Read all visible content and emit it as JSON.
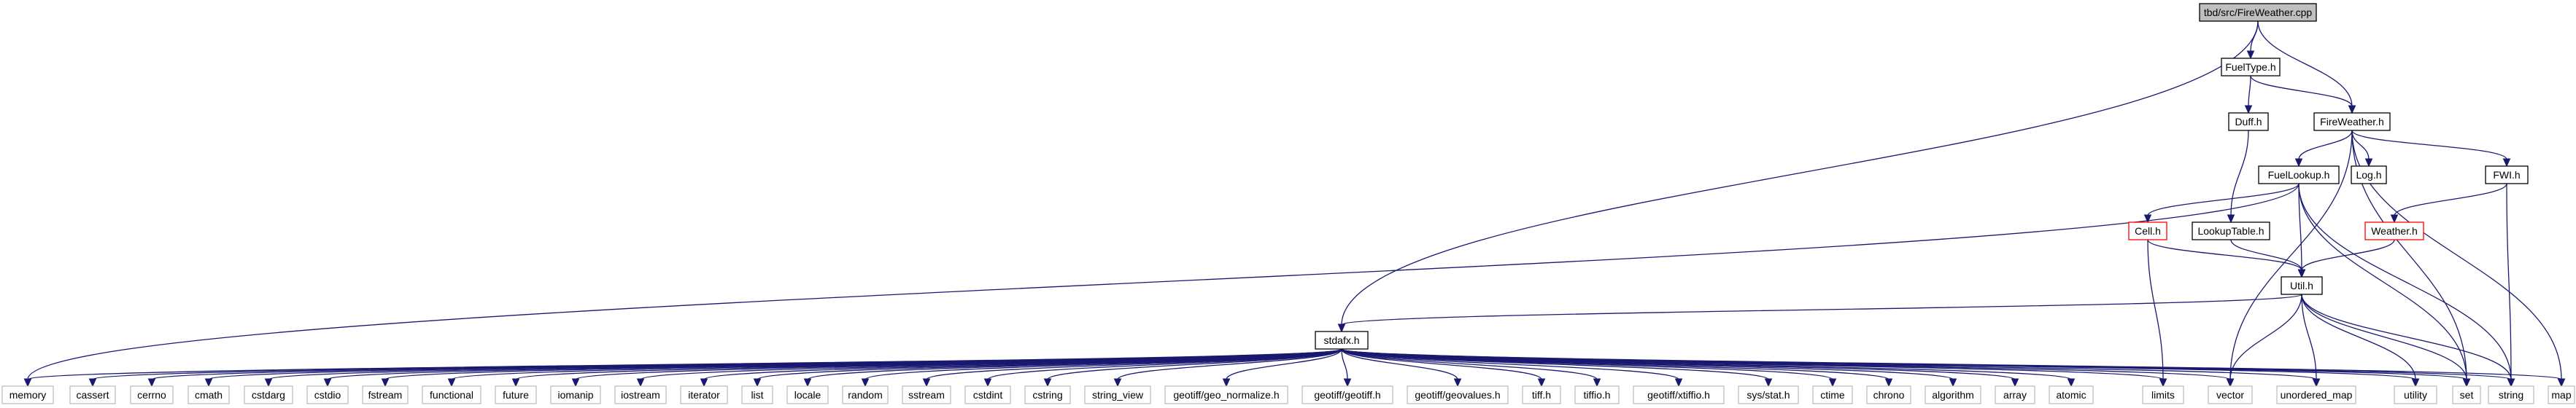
{
  "colors": {
    "edge": "#191970",
    "root_fill": "#bfbfbf",
    "node_fill": "#ffffff",
    "node_border": "#000000",
    "leaf_border": "#bfbfbf",
    "truncated_border": "#ff0000"
  },
  "nodes": {
    "root": {
      "label": "tbd/src/FireWeather.cpp",
      "kind": "root"
    },
    "fueltype": {
      "label": "FuelType.h",
      "kind": "normal"
    },
    "fireweather": {
      "label": "FireWeather.h",
      "kind": "normal"
    },
    "duff": {
      "label": "Duff.h",
      "kind": "normal"
    },
    "fuellookup": {
      "label": "FuelLookup.h",
      "kind": "normal"
    },
    "log": {
      "label": "Log.h",
      "kind": "normal"
    },
    "fwi": {
      "label": "FWI.h",
      "kind": "normal"
    },
    "cell": {
      "label": "Cell.h",
      "kind": "truncated"
    },
    "lookuptable": {
      "label": "LookupTable.h",
      "kind": "normal"
    },
    "weather": {
      "label": "Weather.h",
      "kind": "truncated"
    },
    "util": {
      "label": "Util.h",
      "kind": "normal"
    },
    "stdafx": {
      "label": "stdafx.h",
      "kind": "normal"
    },
    "memory": {
      "label": "memory",
      "kind": "leaf"
    },
    "cassert": {
      "label": "cassert",
      "kind": "leaf"
    },
    "cerrno": {
      "label": "cerrno",
      "kind": "leaf"
    },
    "cmath": {
      "label": "cmath",
      "kind": "leaf"
    },
    "cstdarg": {
      "label": "cstdarg",
      "kind": "leaf"
    },
    "cstdio": {
      "label": "cstdio",
      "kind": "leaf"
    },
    "fstream": {
      "label": "fstream",
      "kind": "leaf"
    },
    "functional": {
      "label": "functional",
      "kind": "leaf"
    },
    "future": {
      "label": "future",
      "kind": "leaf"
    },
    "iomanip": {
      "label": "iomanip",
      "kind": "leaf"
    },
    "iostream": {
      "label": "iostream",
      "kind": "leaf"
    },
    "iterator": {
      "label": "iterator",
      "kind": "leaf"
    },
    "list": {
      "label": "list",
      "kind": "leaf"
    },
    "locale": {
      "label": "locale",
      "kind": "leaf"
    },
    "random": {
      "label": "random",
      "kind": "leaf"
    },
    "sstream": {
      "label": "sstream",
      "kind": "leaf"
    },
    "cstdint": {
      "label": "cstdint",
      "kind": "leaf"
    },
    "cstring": {
      "label": "cstring",
      "kind": "leaf"
    },
    "string_view": {
      "label": "string_view",
      "kind": "leaf"
    },
    "geo_normalize": {
      "label": "geotiff/geo_normalize.h",
      "kind": "leaf"
    },
    "geotiff": {
      "label": "geotiff/geotiff.h",
      "kind": "leaf"
    },
    "geovalues": {
      "label": "geotiff/geovalues.h",
      "kind": "leaf"
    },
    "tiff": {
      "label": "tiff.h",
      "kind": "leaf"
    },
    "tiffio": {
      "label": "tiffio.h",
      "kind": "leaf"
    },
    "xtiffio": {
      "label": "geotiff/xtiffio.h",
      "kind": "leaf"
    },
    "sysstat": {
      "label": "sys/stat.h",
      "kind": "leaf"
    },
    "ctime": {
      "label": "ctime",
      "kind": "leaf"
    },
    "chrono": {
      "label": "chrono",
      "kind": "leaf"
    },
    "algorithm": {
      "label": "algorithm",
      "kind": "leaf"
    },
    "array": {
      "label": "array",
      "kind": "leaf"
    },
    "atomic": {
      "label": "atomic",
      "kind": "leaf"
    },
    "limits": {
      "label": "limits",
      "kind": "leaf"
    },
    "vector": {
      "label": "vector",
      "kind": "leaf"
    },
    "unordered_map": {
      "label": "unordered_map",
      "kind": "leaf"
    },
    "utility": {
      "label": "utility",
      "kind": "leaf"
    },
    "set": {
      "label": "set",
      "kind": "leaf"
    },
    "string": {
      "label": "string",
      "kind": "leaf"
    },
    "map": {
      "label": "map",
      "kind": "leaf"
    }
  },
  "edges": [
    [
      "root",
      "fueltype"
    ],
    [
      "root",
      "fireweather"
    ],
    [
      "root",
      "stdafx"
    ],
    [
      "fueltype",
      "duff"
    ],
    [
      "fueltype",
      "fireweather"
    ],
    [
      "duff",
      "lookuptable"
    ],
    [
      "fireweather",
      "fuellookup"
    ],
    [
      "fireweather",
      "log"
    ],
    [
      "fireweather",
      "fwi"
    ],
    [
      "fireweather",
      "vector"
    ],
    [
      "fireweather",
      "set"
    ],
    [
      "fireweather",
      "map"
    ],
    [
      "fuellookup",
      "cell"
    ],
    [
      "fuellookup",
      "util"
    ],
    [
      "fuellookup",
      "memory"
    ],
    [
      "fuellookup",
      "set"
    ],
    [
      "fuellookup",
      "string"
    ],
    [
      "fwi",
      "weather"
    ],
    [
      "fwi",
      "string"
    ],
    [
      "cell",
      "util"
    ],
    [
      "cell",
      "limits"
    ],
    [
      "lookuptable",
      "util"
    ],
    [
      "weather",
      "util"
    ],
    [
      "util",
      "stdafx"
    ],
    [
      "util",
      "vector"
    ],
    [
      "util",
      "unordered_map"
    ],
    [
      "util",
      "utility"
    ],
    [
      "util",
      "set"
    ],
    [
      "util",
      "string"
    ],
    [
      "stdafx",
      "memory"
    ],
    [
      "stdafx",
      "cassert"
    ],
    [
      "stdafx",
      "cerrno"
    ],
    [
      "stdafx",
      "cmath"
    ],
    [
      "stdafx",
      "cstdarg"
    ],
    [
      "stdafx",
      "cstdio"
    ],
    [
      "stdafx",
      "fstream"
    ],
    [
      "stdafx",
      "functional"
    ],
    [
      "stdafx",
      "future"
    ],
    [
      "stdafx",
      "iomanip"
    ],
    [
      "stdafx",
      "iostream"
    ],
    [
      "stdafx",
      "iterator"
    ],
    [
      "stdafx",
      "list"
    ],
    [
      "stdafx",
      "locale"
    ],
    [
      "stdafx",
      "random"
    ],
    [
      "stdafx",
      "sstream"
    ],
    [
      "stdafx",
      "cstdint"
    ],
    [
      "stdafx",
      "cstring"
    ],
    [
      "stdafx",
      "string_view"
    ],
    [
      "stdafx",
      "geo_normalize"
    ],
    [
      "stdafx",
      "geotiff"
    ],
    [
      "stdafx",
      "geovalues"
    ],
    [
      "stdafx",
      "tiff"
    ],
    [
      "stdafx",
      "tiffio"
    ],
    [
      "stdafx",
      "xtiffio"
    ],
    [
      "stdafx",
      "sysstat"
    ],
    [
      "stdafx",
      "ctime"
    ],
    [
      "stdafx",
      "chrono"
    ],
    [
      "stdafx",
      "algorithm"
    ],
    [
      "stdafx",
      "array"
    ],
    [
      "stdafx",
      "atomic"
    ],
    [
      "stdafx",
      "limits"
    ],
    [
      "stdafx",
      "vector"
    ],
    [
      "stdafx",
      "unordered_map"
    ],
    [
      "stdafx",
      "utility"
    ],
    [
      "stdafx",
      "set"
    ],
    [
      "stdafx",
      "string"
    ],
    [
      "stdafx",
      "map"
    ]
  ]
}
